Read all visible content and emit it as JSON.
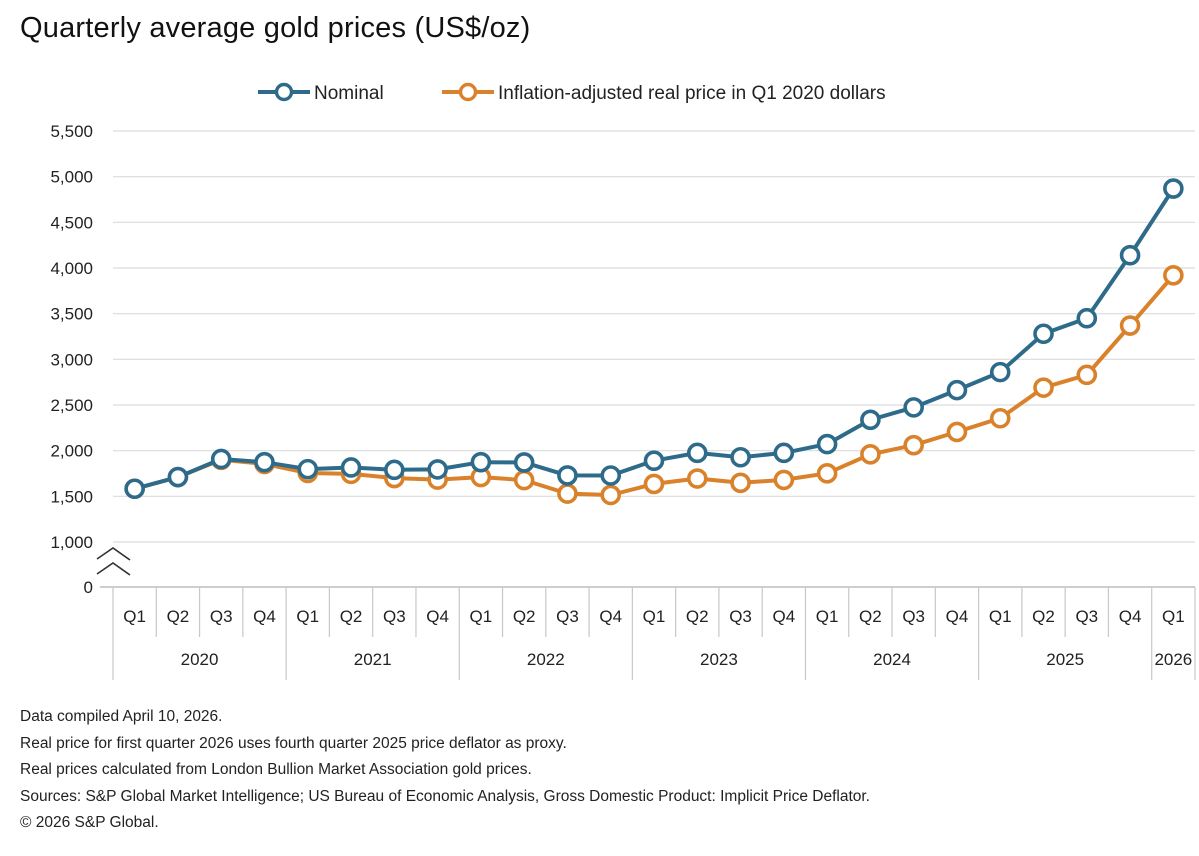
{
  "title": "Quarterly average gold prices (US$/oz)",
  "chart_data": {
    "type": "line",
    "title": "Quarterly average gold prices (US$/oz)",
    "quarters": [
      "Q1",
      "Q2",
      "Q3",
      "Q4",
      "Q1",
      "Q2",
      "Q3",
      "Q4",
      "Q1",
      "Q2",
      "Q3",
      "Q4",
      "Q1",
      "Q2",
      "Q3",
      "Q4",
      "Q1",
      "Q2",
      "Q3",
      "Q4",
      "Q1",
      "Q2",
      "Q3",
      "Q4",
      "Q1"
    ],
    "years": [
      {
        "label": "2020",
        "start": 0,
        "count": 4
      },
      {
        "label": "2021",
        "start": 4,
        "count": 4
      },
      {
        "label": "2022",
        "start": 8,
        "count": 4
      },
      {
        "label": "2023",
        "start": 12,
        "count": 4
      },
      {
        "label": "2024",
        "start": 16,
        "count": 4
      },
      {
        "label": "2025",
        "start": 20,
        "count": 4
      },
      {
        "label": "2026",
        "start": 24,
        "count": 1
      }
    ],
    "series": [
      {
        "name": "Nominal",
        "color": "#2e6b8a",
        "values": [
          1583,
          1711,
          1909,
          1874,
          1798,
          1816,
          1790,
          1795,
          1874,
          1871,
          1729,
          1728,
          1890,
          1976,
          1928,
          1976,
          2072,
          2338,
          2474,
          2663,
          2860,
          3280,
          3450,
          4140,
          4870
        ]
      },
      {
        "name": "Inflation-adjusted real price in Q1 2020 dollars",
        "color": "#d9822b",
        "values": [
          1583,
          1710,
          1900,
          1855,
          1756,
          1746,
          1700,
          1683,
          1711,
          1678,
          1530,
          1515,
          1636,
          1695,
          1648,
          1680,
          1752,
          1960,
          2060,
          2205,
          2355,
          2690,
          2830,
          3370,
          3920
        ]
      }
    ],
    "y_axis": {
      "min": 1000,
      "max": 5500,
      "ticks": [
        "5,500",
        "5,000",
        "4,500",
        "4,000",
        "3,500",
        "3,000",
        "2,500",
        "2,000",
        "1,500",
        "1,000"
      ],
      "tick_values": [
        5500,
        5000,
        4500,
        4000,
        3500,
        3000,
        2500,
        2000,
        1500,
        1000
      ],
      "break_label": "0",
      "axis_break": true
    },
    "legend_position": "top-center",
    "grid": true
  },
  "notes": [
    "Data compiled April 10, 2026.",
    "Real price for first quarter 2026 uses fourth quarter 2025 price deflator as proxy.",
    "Real prices calculated from London Bullion Market Association gold prices.",
    "Sources: S&P Global Market Intelligence; US Bureau of Economic Analysis, Gross Domestic Product: Implicit Price Deflator.",
    "© 2026 S&P Global."
  ]
}
